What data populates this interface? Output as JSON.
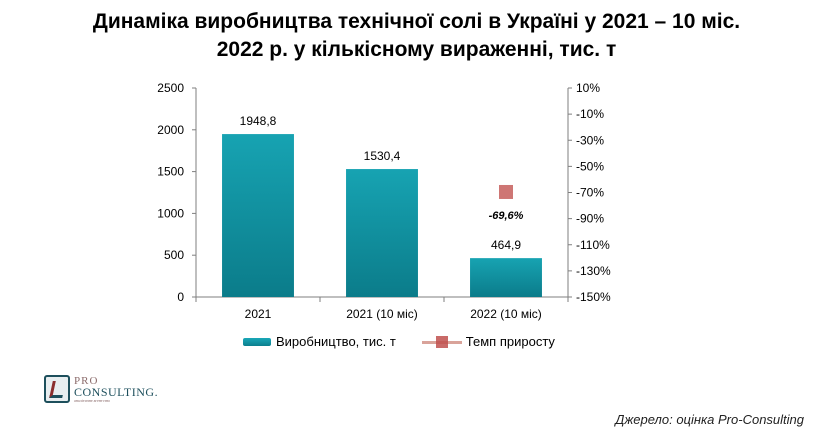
{
  "title": {
    "line1": "Динаміка виробництва технічної солі в Україні у 2021 – 10 міс.",
    "line2": "2022 р. у кількісному вираженні, тис. т"
  },
  "chart_data": {
    "type": "bar",
    "categories": [
      "2021",
      "2021 (10 міс)",
      "2022 (10 міс)"
    ],
    "series": [
      {
        "name": "Виробництво, тис. т",
        "type": "bar",
        "axis": "left",
        "values": [
          1948.8,
          1530.4,
          464.9
        ],
        "labels": [
          "1948,8",
          "1530,4",
          "464,9"
        ],
        "color": "#12949f"
      },
      {
        "name": "Темп приросту",
        "type": "line",
        "axis": "right",
        "values": [
          null,
          null,
          -69.6
        ],
        "labels": [
          "",
          "",
          "-69,6%"
        ],
        "color": "#c0504d"
      }
    ],
    "y_left": {
      "lim": [
        0,
        2500
      ],
      "ticks": [
        0,
        500,
        1000,
        1500,
        2000,
        2500
      ],
      "tick_labels": [
        "0",
        "500",
        "1000",
        "1500",
        "2000",
        "2500"
      ]
    },
    "y_right": {
      "lim": [
        -150,
        10
      ],
      "ticks": [
        10,
        -10,
        -30,
        -50,
        -70,
        -90,
        -110,
        -130,
        -150
      ],
      "tick_labels": [
        "10%",
        "-10%",
        "-30%",
        "-50%",
        "-70%",
        "-90%",
        "-110%",
        "-130%",
        "-150%"
      ]
    },
    "grid": false,
    "legend": "bottom"
  },
  "logo": {
    "line1": "PRO",
    "line2": "CONSULTING.",
    "line3": "аналітичне агентство"
  },
  "source": "Джерело: оцінка Pro-Consulting"
}
